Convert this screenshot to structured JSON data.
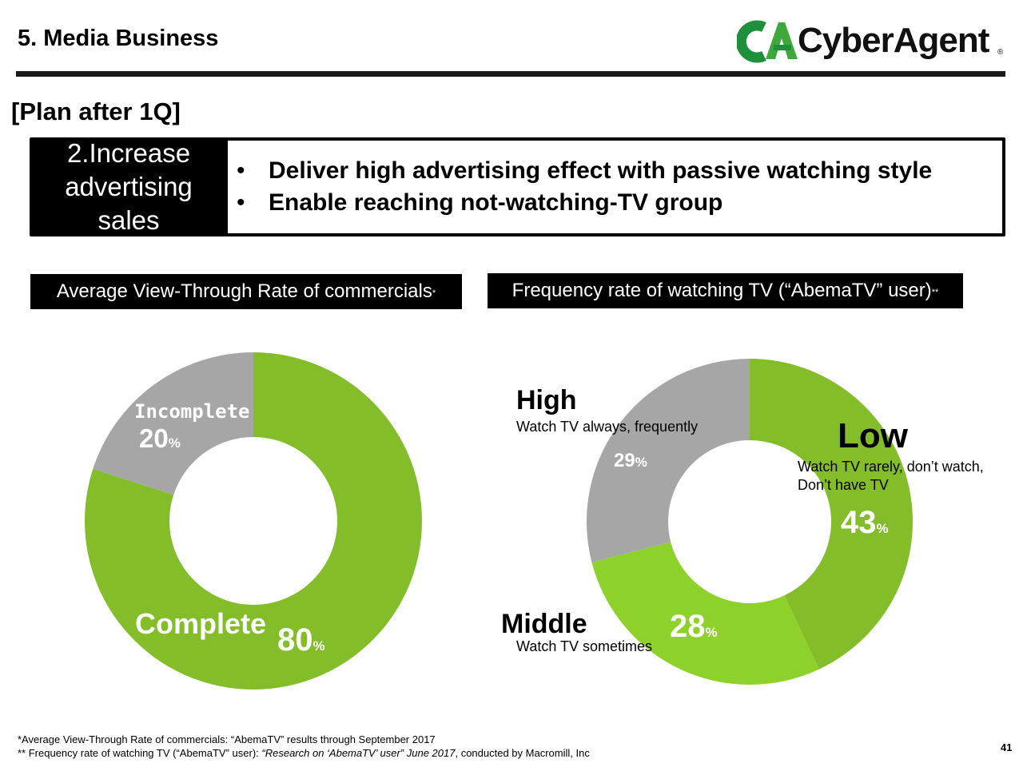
{
  "header": {
    "title": "5. Media Business",
    "logo_text": "CyberAgent",
    "logo_mark": "CA",
    "logo_reg": "®"
  },
  "section_heading": "[Plan after 1Q]",
  "plan": {
    "label_lines": [
      "2.Increase",
      "advertising",
      "sales"
    ],
    "bullets": [
      "Deliver high advertising effect with passive watching style",
      "Enable reaching not-watching-TV group"
    ],
    "bullet_char": "•"
  },
  "chart_data": [
    {
      "type": "pie",
      "title": "Average View-Through Rate of commercials",
      "title_mark": "*",
      "slices": [
        {
          "label": "Complete",
          "value": 80,
          "color": "#84BD2A"
        },
        {
          "label": "Incomplete",
          "value": 20,
          "color": "#A6A6A6"
        }
      ],
      "unit": "%"
    },
    {
      "type": "pie",
      "title": "Frequency rate of watching TV (“AbemaTV” user)",
      "title_mark": "**",
      "slices": [
        {
          "label": "Low",
          "description_lines": [
            "Watch TV rarely, don’t watch,",
            "Don’t have TV"
          ],
          "value": 43,
          "color": "#84BD2A"
        },
        {
          "label": "Middle",
          "description_lines": [
            "Watch TV sometimes"
          ],
          "value": 28,
          "color": "#8DD12A"
        },
        {
          "label": "High",
          "description_lines": [
            "Watch TV always, frequently"
          ],
          "value": 29,
          "color": "#A6A6A6"
        }
      ],
      "unit": "%"
    }
  ],
  "footnotes": {
    "line1": "*Average View-Through Rate of commercials: “AbemaTV” results through September 2017",
    "line2_prefix": "** Frequency rate of watching TV (“AbemaTV” user): ",
    "line2_italic": "“Research on ‘AbemaTV’ user” June 2017",
    "line2_suffix": ",  conducted by Macromill, Inc"
  },
  "page_number": "41",
  "colors": {
    "green": "#84BD2A",
    "light_green": "#8DD12A",
    "gray": "#A6A6A6",
    "black": "#000000"
  }
}
